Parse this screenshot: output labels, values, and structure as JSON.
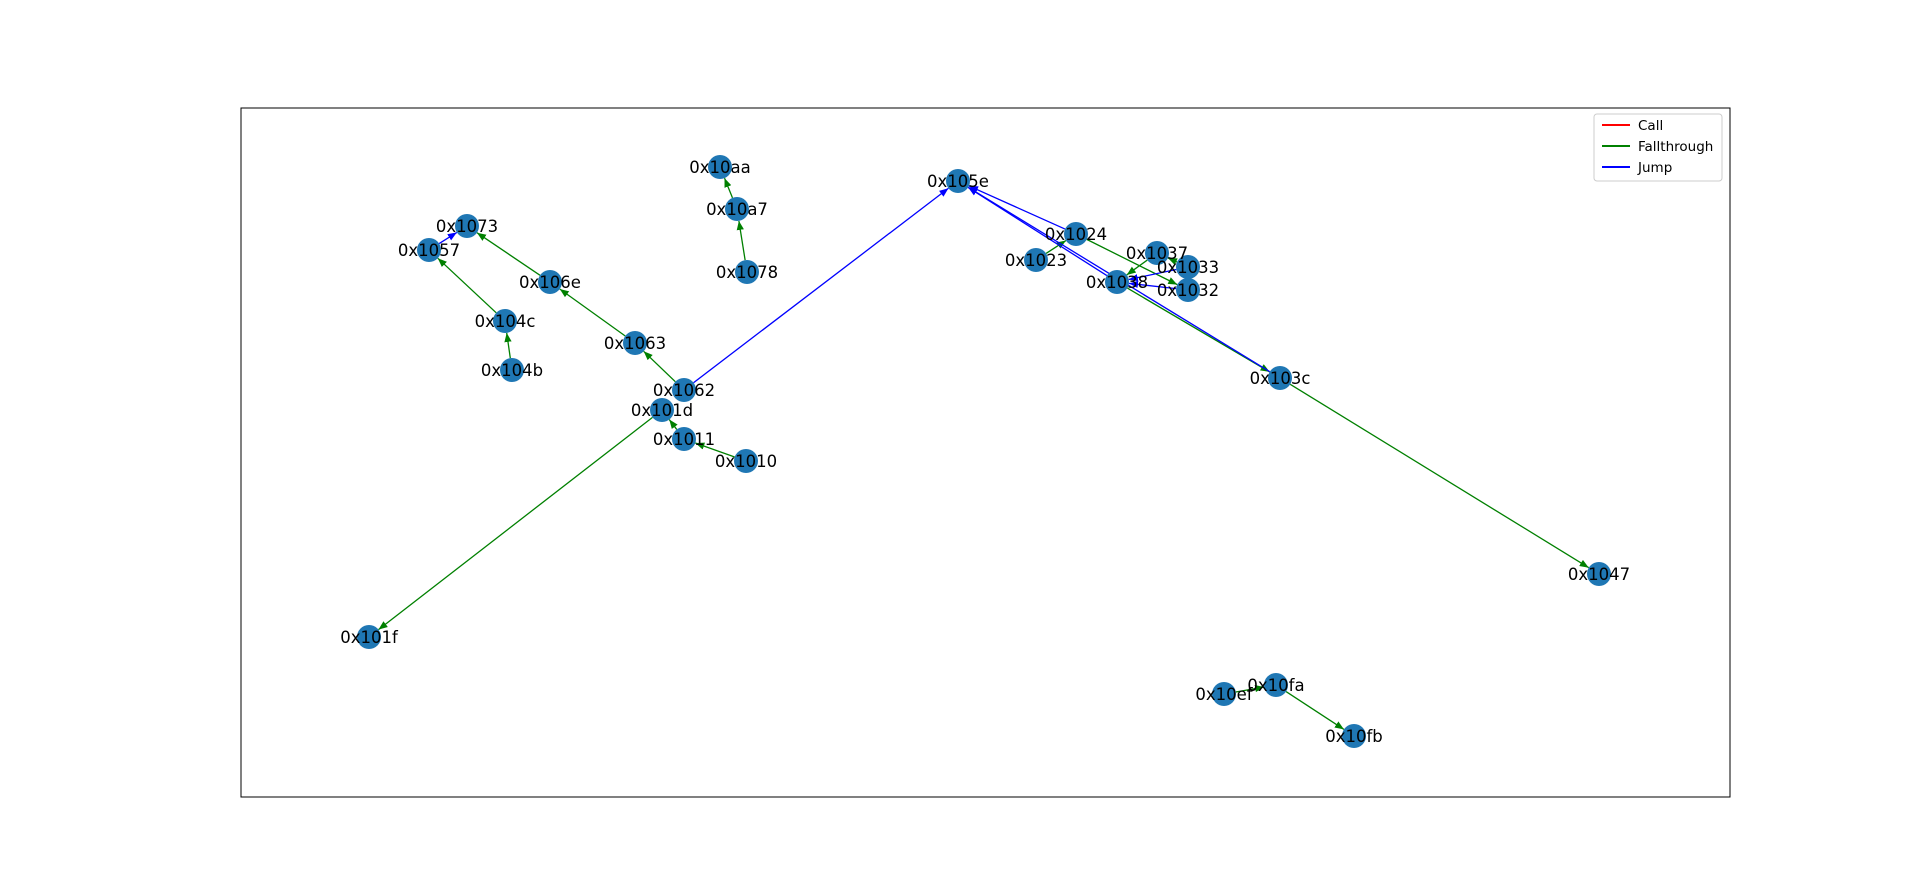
{
  "diagram": {
    "type": "control-flow-graph",
    "legend": {
      "placement": "top-right",
      "entries": [
        {
          "key": "call",
          "label": "Call",
          "color": "#ff0000"
        },
        {
          "key": "fallthrough",
          "label": "Fallthrough",
          "color": "#008000"
        },
        {
          "key": "jump",
          "label": "Jump",
          "color": "#0000ff"
        }
      ]
    },
    "node_color": "#1f77b4",
    "nodes": [
      {
        "id": "0x10aa",
        "label": "0x10aa"
      },
      {
        "id": "0x10a7",
        "label": "0x10a7"
      },
      {
        "id": "0x1078",
        "label": "0x1078"
      },
      {
        "id": "0x105e",
        "label": "0x105e"
      },
      {
        "id": "0x1073",
        "label": "0x1073"
      },
      {
        "id": "0x1057",
        "label": "0x1057"
      },
      {
        "id": "0x106e",
        "label": "0x106e"
      },
      {
        "id": "0x104c",
        "label": "0x104c"
      },
      {
        "id": "0x104b",
        "label": "0x104b"
      },
      {
        "id": "0x1063",
        "label": "0x1063"
      },
      {
        "id": "0x1062",
        "label": "0x1062"
      },
      {
        "id": "0x101d",
        "label": "0x101d"
      },
      {
        "id": "0x1011",
        "label": "0x1011"
      },
      {
        "id": "0x1010",
        "label": "0x1010"
      },
      {
        "id": "0x101f",
        "label": "0x101f"
      },
      {
        "id": "0x1024",
        "label": "0x1024"
      },
      {
        "id": "0x1023",
        "label": "0x1023"
      },
      {
        "id": "0x1037",
        "label": "0x1037"
      },
      {
        "id": "0x1033",
        "label": "0x1033"
      },
      {
        "id": "0x1038",
        "label": "0x1038"
      },
      {
        "id": "0x1032",
        "label": "0x1032"
      },
      {
        "id": "0x103c",
        "label": "0x103c"
      },
      {
        "id": "0x1047",
        "label": "0x1047"
      },
      {
        "id": "0x10ef",
        "label": "0x10ef"
      },
      {
        "id": "0x10fa",
        "label": "0x10fa"
      },
      {
        "id": "0x10fb",
        "label": "0x10fb"
      }
    ],
    "edges": [
      {
        "from": "0x10a7",
        "to": "0x10aa",
        "type": "fallthrough"
      },
      {
        "from": "0x1078",
        "to": "0x10a7",
        "type": "fallthrough"
      },
      {
        "from": "0x106e",
        "to": "0x1073",
        "type": "fallthrough"
      },
      {
        "from": "0x1057",
        "to": "0x1073",
        "type": "jump"
      },
      {
        "from": "0x104c",
        "to": "0x1057",
        "type": "fallthrough"
      },
      {
        "from": "0x104b",
        "to": "0x104c",
        "type": "fallthrough"
      },
      {
        "from": "0x1063",
        "to": "0x106e",
        "type": "fallthrough"
      },
      {
        "from": "0x1062",
        "to": "0x1063",
        "type": "fallthrough"
      },
      {
        "from": "0x1062",
        "to": "0x105e",
        "type": "jump"
      },
      {
        "from": "0x1011",
        "to": "0x101d",
        "type": "fallthrough"
      },
      {
        "from": "0x1010",
        "to": "0x1011",
        "type": "fallthrough"
      },
      {
        "from": "0x101d",
        "to": "0x101f",
        "type": "fallthrough"
      },
      {
        "from": "0x1023",
        "to": "0x1024",
        "type": "fallthrough"
      },
      {
        "from": "0x1024",
        "to": "0x105e",
        "type": "jump"
      },
      {
        "from": "0x1024",
        "to": "0x1032",
        "type": "fallthrough"
      },
      {
        "from": "0x1037",
        "to": "0x1038",
        "type": "fallthrough"
      },
      {
        "from": "0x1033",
        "to": "0x1037",
        "type": "fallthrough"
      },
      {
        "from": "0x1033",
        "to": "0x1038",
        "type": "jump"
      },
      {
        "from": "0x1032",
        "to": "0x1038",
        "type": "jump"
      },
      {
        "from": "0x1038",
        "to": "0x105e",
        "type": "jump"
      },
      {
        "from": "0x1038",
        "to": "0x103c",
        "type": "fallthrough"
      },
      {
        "from": "0x103c",
        "to": "0x105e",
        "type": "jump"
      },
      {
        "from": "0x103c",
        "to": "0x1047",
        "type": "fallthrough"
      },
      {
        "from": "0x10ef",
        "to": "0x10fa",
        "type": "fallthrough"
      },
      {
        "from": "0x10fa",
        "to": "0x10fb",
        "type": "fallthrough"
      }
    ]
  }
}
